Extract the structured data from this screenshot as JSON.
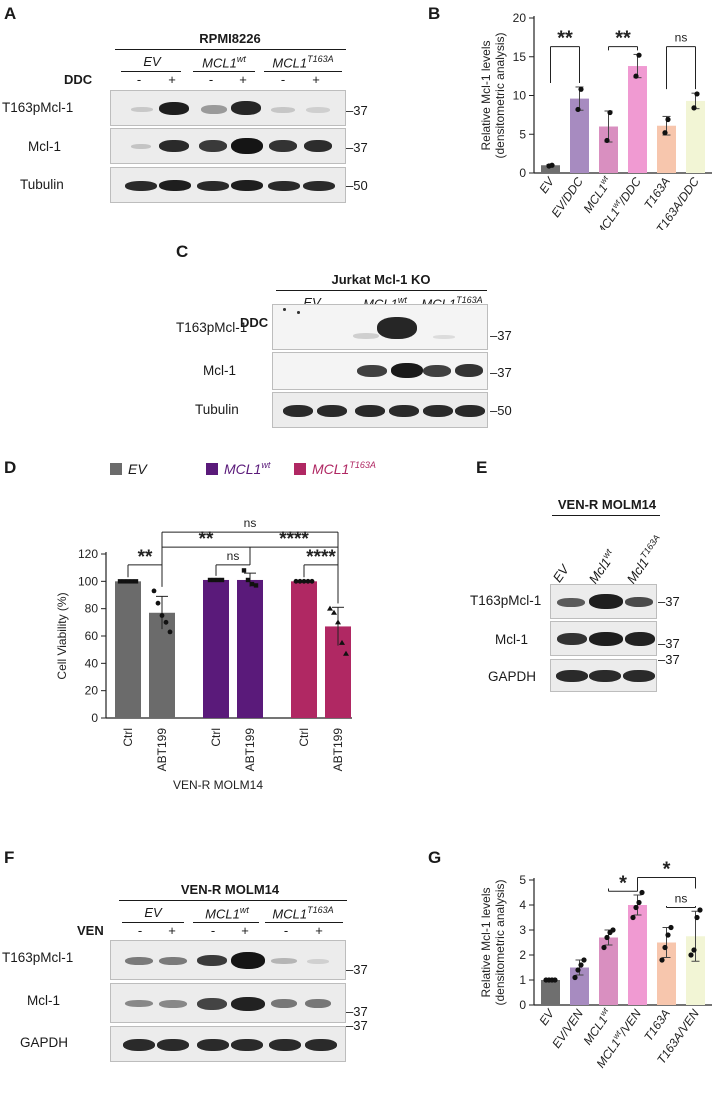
{
  "panels": {
    "A": {
      "letter": "A",
      "cell_line": "RPMI8226",
      "groups": [
        "EV",
        "MCL1",
        "MCL1"
      ],
      "group_sups": [
        "",
        "wt",
        "T163A"
      ],
      "treatment": "DDC",
      "signs": [
        "-",
        "+",
        "-",
        "+",
        "-",
        "+"
      ],
      "rows": [
        "T163pMcl-1",
        "Mcl-1",
        "Tubulin"
      ],
      "markers": [
        "37",
        "37",
        "50"
      ]
    },
    "C": {
      "letter": "C",
      "cell_line": "Jurkat Mcl-1 KO",
      "groups": [
        "EV",
        "MCL1",
        "MCL1"
      ],
      "group_sups": [
        "",
        "wt",
        "T163A"
      ],
      "treatment": "DDC",
      "signs": [
        "-",
        "+",
        "-",
        "+",
        "-",
        "+"
      ],
      "rows": [
        "T163pMcl-1",
        "Mcl-1",
        "Tubulin"
      ],
      "markers": [
        "37",
        "37",
        "50"
      ]
    },
    "E": {
      "letter": "E",
      "cell_line": "VEN-R MOLM14",
      "lanes": [
        "EV",
        "Mcl1",
        "Mcl1"
      ],
      "lane_sups": [
        "",
        "wt",
        "T163A"
      ],
      "rows": [
        "T163pMcl-1",
        "Mcl-1",
        "GAPDH"
      ],
      "markers": [
        "37",
        "37",
        "37"
      ]
    },
    "F": {
      "letter": "F",
      "cell_line": "VEN-R MOLM14",
      "groups": [
        "EV",
        "MCL1",
        "MCL1"
      ],
      "group_sups": [
        "",
        "wt",
        "T163A"
      ],
      "treatment": "VEN",
      "signs": [
        "-",
        "+",
        "-",
        "+",
        "-",
        "+"
      ],
      "rows": [
        "T163pMcl-1",
        "Mcl-1",
        "GAPDH"
      ],
      "markers": [
        "37",
        "37",
        "37"
      ]
    }
  },
  "chart_data": [
    {
      "id": "B",
      "letter": "B",
      "type": "bar",
      "ylabel_lines": [
        "Relative Mcl-1 levels",
        "(densitometric analysis)"
      ],
      "ylim": [
        0,
        20
      ],
      "yticks": [
        "0",
        "5",
        "10",
        "15",
        "20"
      ],
      "categories": [
        "EV",
        "EV/DDC",
        "MCL1wt",
        "MCL1wt/DDC",
        "T163A",
        "T163A/DDC"
      ],
      "category_labels": [
        {
          "base": "EV",
          "sup": "",
          "suffix": ""
        },
        {
          "base": "EV/DDC",
          "sup": "",
          "suffix": ""
        },
        {
          "base": "MCL1",
          "sup": "wt",
          "suffix": ""
        },
        {
          "base": "MCL1",
          "sup": "wt",
          "suffix": "/DDC"
        },
        {
          "base": "T163A",
          "sup": "",
          "suffix": ""
        },
        {
          "base": "T163A/DDC",
          "sup": "",
          "suffix": ""
        }
      ],
      "values": [
        1.0,
        9.6,
        6.0,
        13.8,
        6.1,
        9.3
      ],
      "errors": [
        0.1,
        1.5,
        2.0,
        1.5,
        1.2,
        1.0
      ],
      "points": [
        [
          0.9,
          1.0
        ],
        [
          8.2,
          10.8
        ],
        [
          4.2,
          7.8
        ],
        [
          12.5,
          15.2
        ],
        [
          5.2,
          6.9
        ],
        [
          8.4,
          10.2
        ]
      ],
      "colors": [
        "#6f6f6f",
        "#a78bc0",
        "#d98fc0",
        "#f09ad2",
        "#f7c6ad",
        "#f2f5d5"
      ],
      "significance": [
        {
          "from": 0,
          "to": 1,
          "label": "**"
        },
        {
          "from": 2,
          "to": 3,
          "label": "**"
        },
        {
          "from": 4,
          "to": 5,
          "label": "ns"
        }
      ]
    },
    {
      "id": "D",
      "letter": "D",
      "type": "bar",
      "ylabel": "Cell Viability  (%)",
      "xlabel": "VEN-R MOLM14",
      "ylim": [
        0,
        120
      ],
      "yticks": [
        "0",
        "20",
        "40",
        "60",
        "80",
        "100",
        "120"
      ],
      "legend": [
        {
          "name": "EV",
          "sup": "",
          "color": "#6b6b6b",
          "text_color": "#1a1a1a"
        },
        {
          "name": "MCL1",
          "sup": "wt",
          "color": "#5a1a7a",
          "text_color": "#5a1a7a"
        },
        {
          "name": "MCL1",
          "sup": "T163A",
          "color": "#b02863",
          "text_color": "#b02863"
        }
      ],
      "categories": [
        "Ctrl",
        "ABT199",
        "Ctrl",
        "ABT199",
        "Ctrl",
        "ABT199"
      ],
      "values": [
        100,
        77,
        101,
        101,
        100,
        67
      ],
      "errors": [
        0.5,
        12,
        1,
        5,
        0.5,
        14
      ],
      "colors": [
        "#6b6b6b",
        "#6b6b6b",
        "#5a1a7a",
        "#5a1a7a",
        "#b02863",
        "#b02863"
      ],
      "points": [
        [
          100,
          100,
          100,
          100,
          100
        ],
        [
          93,
          84,
          75,
          70,
          63
        ],
        [
          101,
          101,
          101,
          101
        ],
        [
          108,
          101,
          98,
          97
        ],
        [
          100,
          100,
          100,
          100,
          100
        ],
        [
          80,
          77,
          70,
          55,
          47
        ]
      ],
      "significance": [
        {
          "from": 0,
          "to": 1,
          "label": "**"
        },
        {
          "from": 2,
          "to": 3,
          "label": "ns"
        },
        {
          "from": 4,
          "to": 5,
          "label": "****"
        },
        {
          "from": 1,
          "to": 3,
          "label": "**"
        },
        {
          "from": 3,
          "to": 5,
          "label": "****"
        },
        {
          "from": 1,
          "to": 5,
          "label": "ns"
        }
      ]
    },
    {
      "id": "G",
      "letter": "G",
      "type": "bar",
      "ylabel_lines": [
        "Relative Mcl-1 levels",
        "(densitometric analysis)"
      ],
      "ylim": [
        0,
        5
      ],
      "yticks": [
        "0",
        "1",
        "2",
        "3",
        "4",
        "5"
      ],
      "categories": [
        "EV",
        "EV/VEN",
        "MCL1wt",
        "MCL1wt/VEN",
        "T163A",
        "T163A/VEN"
      ],
      "category_labels": [
        {
          "base": "EV",
          "sup": "",
          "suffix": ""
        },
        {
          "base": "EV/VEN",
          "sup": "",
          "suffix": ""
        },
        {
          "base": "MCL1",
          "sup": "wt",
          "suffix": ""
        },
        {
          "base": "MCL1",
          "sup": "wt",
          "suffix": "/VEN"
        },
        {
          "base": "T163A",
          "sup": "",
          "suffix": ""
        },
        {
          "base": "T163A/VEN",
          "sup": "",
          "suffix": ""
        }
      ],
      "values": [
        1.0,
        1.5,
        2.7,
        4.0,
        2.5,
        2.75
      ],
      "errors": [
        0.02,
        0.3,
        0.3,
        0.4,
        0.6,
        1.0
      ],
      "points": [
        [
          1,
          1,
          1,
          1
        ],
        [
          1.1,
          1.4,
          1.6,
          1.8
        ],
        [
          2.3,
          2.7,
          2.9,
          3.0
        ],
        [
          3.5,
          3.9,
          4.1,
          4.5
        ],
        [
          1.8,
          2.3,
          2.8,
          3.1
        ],
        [
          2.0,
          2.2,
          3.5,
          3.8
        ]
      ],
      "colors": [
        "#6f6f6f",
        "#a78bc0",
        "#d98fc0",
        "#f09ad2",
        "#f7c6ad",
        "#f2f5d5"
      ],
      "significance": [
        {
          "from": 2,
          "to": 3,
          "label": "*"
        },
        {
          "from": 4,
          "to": 5,
          "label": "ns"
        },
        {
          "from": 3,
          "to": 5,
          "label": "*"
        }
      ]
    }
  ]
}
